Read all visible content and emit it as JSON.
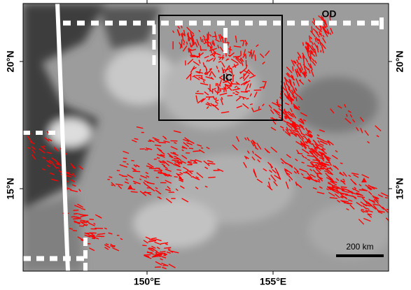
{
  "map": {
    "lat_labels": [
      "20°N",
      "15°N"
    ],
    "lon_labels": [
      "150°E",
      "155°E"
    ],
    "features": [
      {
        "label": "OD"
      },
      {
        "label": "IC"
      }
    ],
    "scale_bar": "200 km"
  }
}
